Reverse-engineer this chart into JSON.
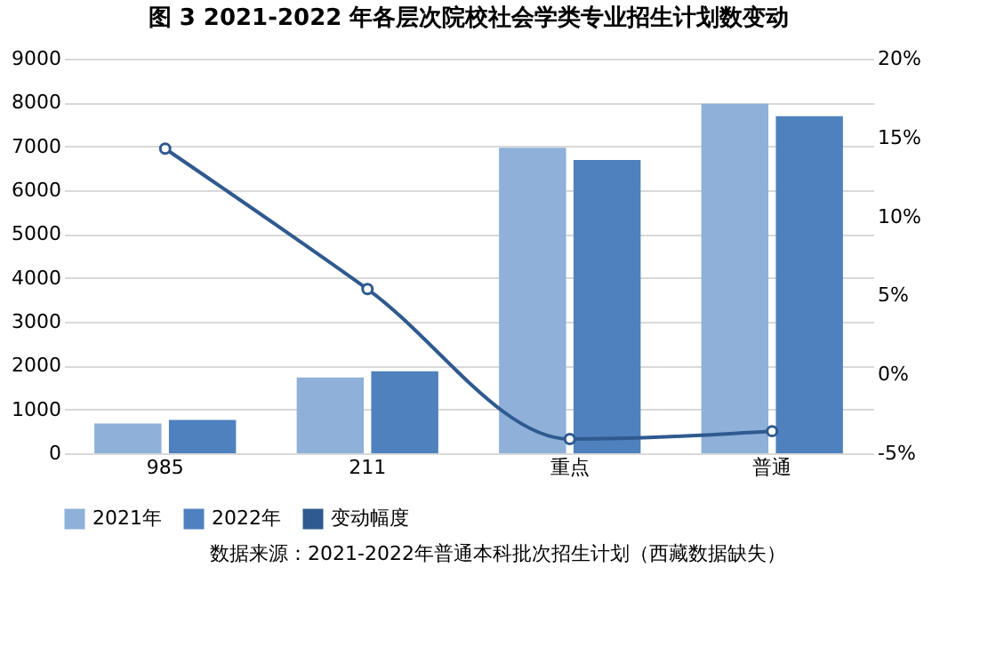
{
  "chart_data": {
    "type": "bar",
    "title": "图 3 2021-2022 年各层次院校社会学类专业招生计划数变动",
    "categories": [
      "985",
      "211",
      "重点",
      "普通"
    ],
    "series": [
      {
        "name": "2021年",
        "color": "#8eb0d9",
        "values": [
          680,
          1730,
          6970,
          7970
        ]
      },
      {
        "name": "2022年",
        "color": "#4e81bd",
        "values": [
          760,
          1870,
          6690,
          7690
        ]
      },
      {
        "name": "变动幅度",
        "type": "line",
        "axis": "y2",
        "color": "#2f5a8f",
        "values": [
          14.3,
          5.4,
          -4.1,
          -3.6
        ]
      }
    ],
    "ylim": [
      0,
      9000
    ],
    "yticks": [
      0,
      1000,
      2000,
      3000,
      4000,
      5000,
      6000,
      7000,
      8000,
      9000
    ],
    "y2lim": [
      -5,
      20
    ],
    "y2ticks": [
      {
        "value": -5,
        "label": "-5%"
      },
      {
        "value": 0,
        "label": "0%"
      },
      {
        "value": 5,
        "label": "5%"
      },
      {
        "value": 10,
        "label": "10%"
      },
      {
        "value": 15,
        "label": "15%"
      },
      {
        "value": 20,
        "label": "20%"
      }
    ],
    "grid": "y",
    "legend": "bottom",
    "marker": "circle",
    "line_style": "solid",
    "annotations": [
      "数据来源：2021-2022年普通本科批次招生计划（西藏数据缺失）"
    ]
  }
}
